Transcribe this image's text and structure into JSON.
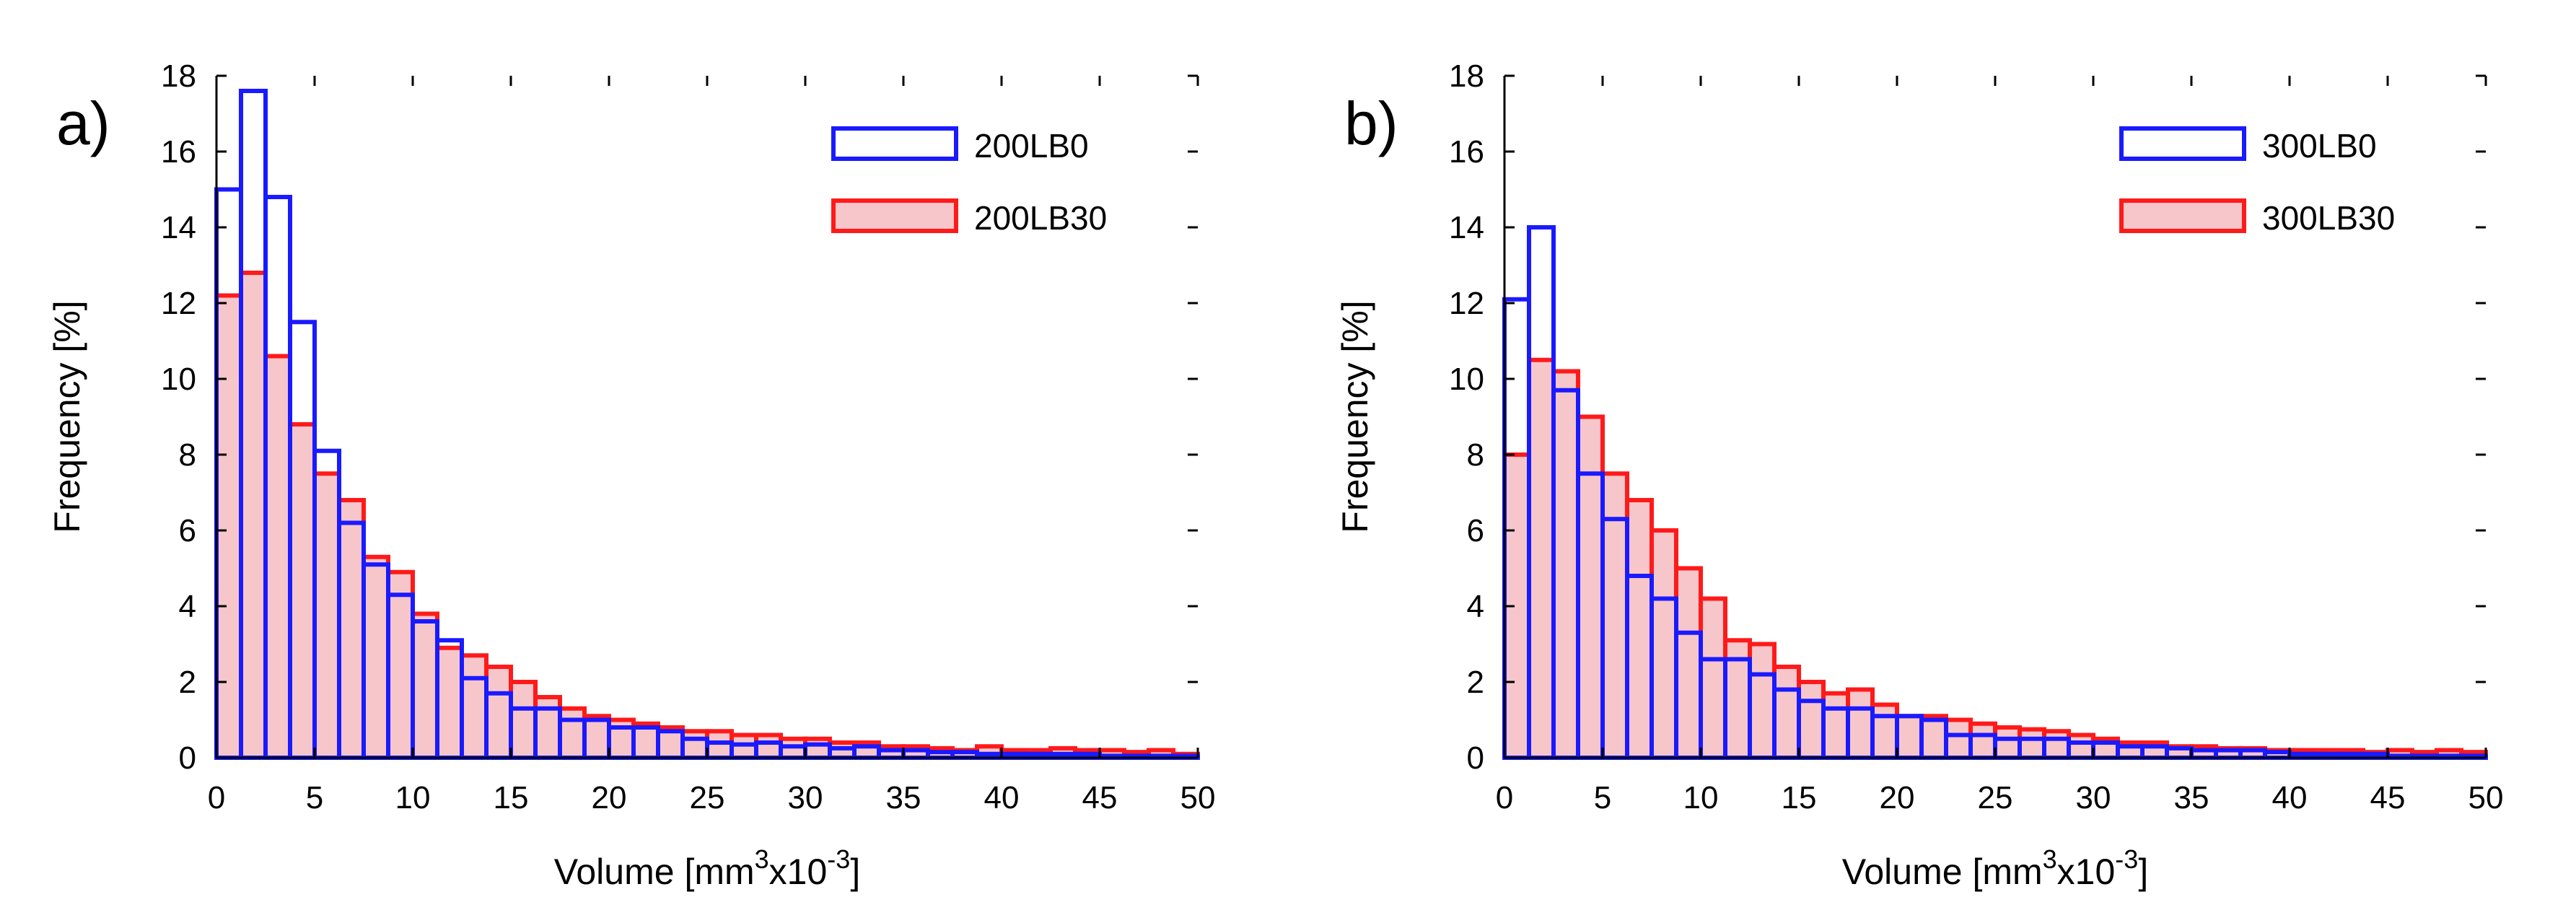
{
  "chart_data": [
    {
      "type": "bar",
      "panel_label": "a)",
      "title": "",
      "xlabel": {
        "prefix": "Volume [mm",
        "sup1": "3",
        "mid": "x10",
        "sup2": "-3",
        "suffix": "]"
      },
      "ylabel": "Frequency [%]",
      "xlim": [
        0,
        50
      ],
      "ylim": [
        0,
        18
      ],
      "xticks": [
        "0",
        "5",
        "10",
        "15",
        "20",
        "25",
        "30",
        "35",
        "40",
        "45",
        "50"
      ],
      "yticks": [
        "0",
        "2",
        "4",
        "6",
        "8",
        "10",
        "12",
        "14",
        "16",
        "18"
      ],
      "bin_width": 1.25,
      "legend_position": "top-right",
      "series": [
        {
          "name": "200LB0",
          "style": "outline",
          "color": "#1a1aff",
          "values": [
            15.0,
            17.6,
            14.8,
            11.5,
            8.1,
            6.2,
            5.1,
            4.3,
            3.6,
            3.1,
            2.1,
            1.7,
            1.3,
            1.3,
            1.0,
            1.0,
            0.8,
            0.8,
            0.7,
            0.5,
            0.4,
            0.35,
            0.4,
            0.3,
            0.35,
            0.25,
            0.3,
            0.2,
            0.2,
            0.15,
            0.15,
            0.1,
            0.1,
            0.1,
            0.1,
            0.1,
            0.05,
            0.05,
            0.05,
            0.05
          ]
        },
        {
          "name": "200LB30",
          "style": "filled",
          "color": "#ff1a1a",
          "fill": "#f7c6ca",
          "values": [
            12.2,
            12.8,
            10.6,
            8.8,
            7.5,
            6.8,
            5.3,
            4.9,
            3.8,
            2.9,
            2.7,
            2.4,
            2.0,
            1.6,
            1.3,
            1.1,
            1.0,
            0.9,
            0.8,
            0.7,
            0.7,
            0.6,
            0.6,
            0.5,
            0.5,
            0.4,
            0.4,
            0.3,
            0.3,
            0.25,
            0.2,
            0.3,
            0.2,
            0.2,
            0.25,
            0.2,
            0.2,
            0.15,
            0.2,
            0.1
          ]
        }
      ],
      "legend": [
        "200LB0",
        "200LB30"
      ]
    },
    {
      "type": "bar",
      "panel_label": "b)",
      "title": "",
      "xlabel": {
        "prefix": "Volume [mm",
        "sup1": "3",
        "mid": "x10",
        "sup2": "-3",
        "suffix": "]"
      },
      "ylabel": "Frequency [%]",
      "xlim": [
        0,
        50
      ],
      "ylim": [
        0,
        18
      ],
      "xticks": [
        "0",
        "5",
        "10",
        "15",
        "20",
        "25",
        "30",
        "35",
        "40",
        "45",
        "50"
      ],
      "yticks": [
        "0",
        "2",
        "4",
        "6",
        "8",
        "10",
        "12",
        "14",
        "16",
        "18"
      ],
      "bin_width": 1.25,
      "legend_position": "top-right",
      "series": [
        {
          "name": "300LB0",
          "style": "outline",
          "color": "#1a1aff",
          "values": [
            12.1,
            14.0,
            9.7,
            7.5,
            6.3,
            4.8,
            4.2,
            3.3,
            2.6,
            2.6,
            2.2,
            1.8,
            1.5,
            1.3,
            1.3,
            1.1,
            1.1,
            1.0,
            0.6,
            0.6,
            0.5,
            0.5,
            0.5,
            0.4,
            0.4,
            0.3,
            0.3,
            0.25,
            0.2,
            0.2,
            0.2,
            0.15,
            0.1,
            0.1,
            0.1,
            0.1,
            0.05,
            0.05,
            0.05,
            0.05
          ]
        },
        {
          "name": "300LB30",
          "style": "filled",
          "color": "#ff1a1a",
          "fill": "#f7c6ca",
          "values": [
            8.0,
            10.5,
            10.2,
            9.0,
            7.5,
            6.8,
            6.0,
            5.0,
            4.2,
            3.1,
            3.0,
            2.4,
            2.0,
            1.7,
            1.8,
            1.4,
            1.1,
            1.1,
            1.0,
            0.9,
            0.8,
            0.75,
            0.7,
            0.6,
            0.5,
            0.4,
            0.4,
            0.3,
            0.3,
            0.25,
            0.25,
            0.2,
            0.2,
            0.2,
            0.2,
            0.15,
            0.2,
            0.15,
            0.2,
            0.15
          ]
        }
      ],
      "legend": [
        "300LB0",
        "300LB30"
      ]
    }
  ]
}
